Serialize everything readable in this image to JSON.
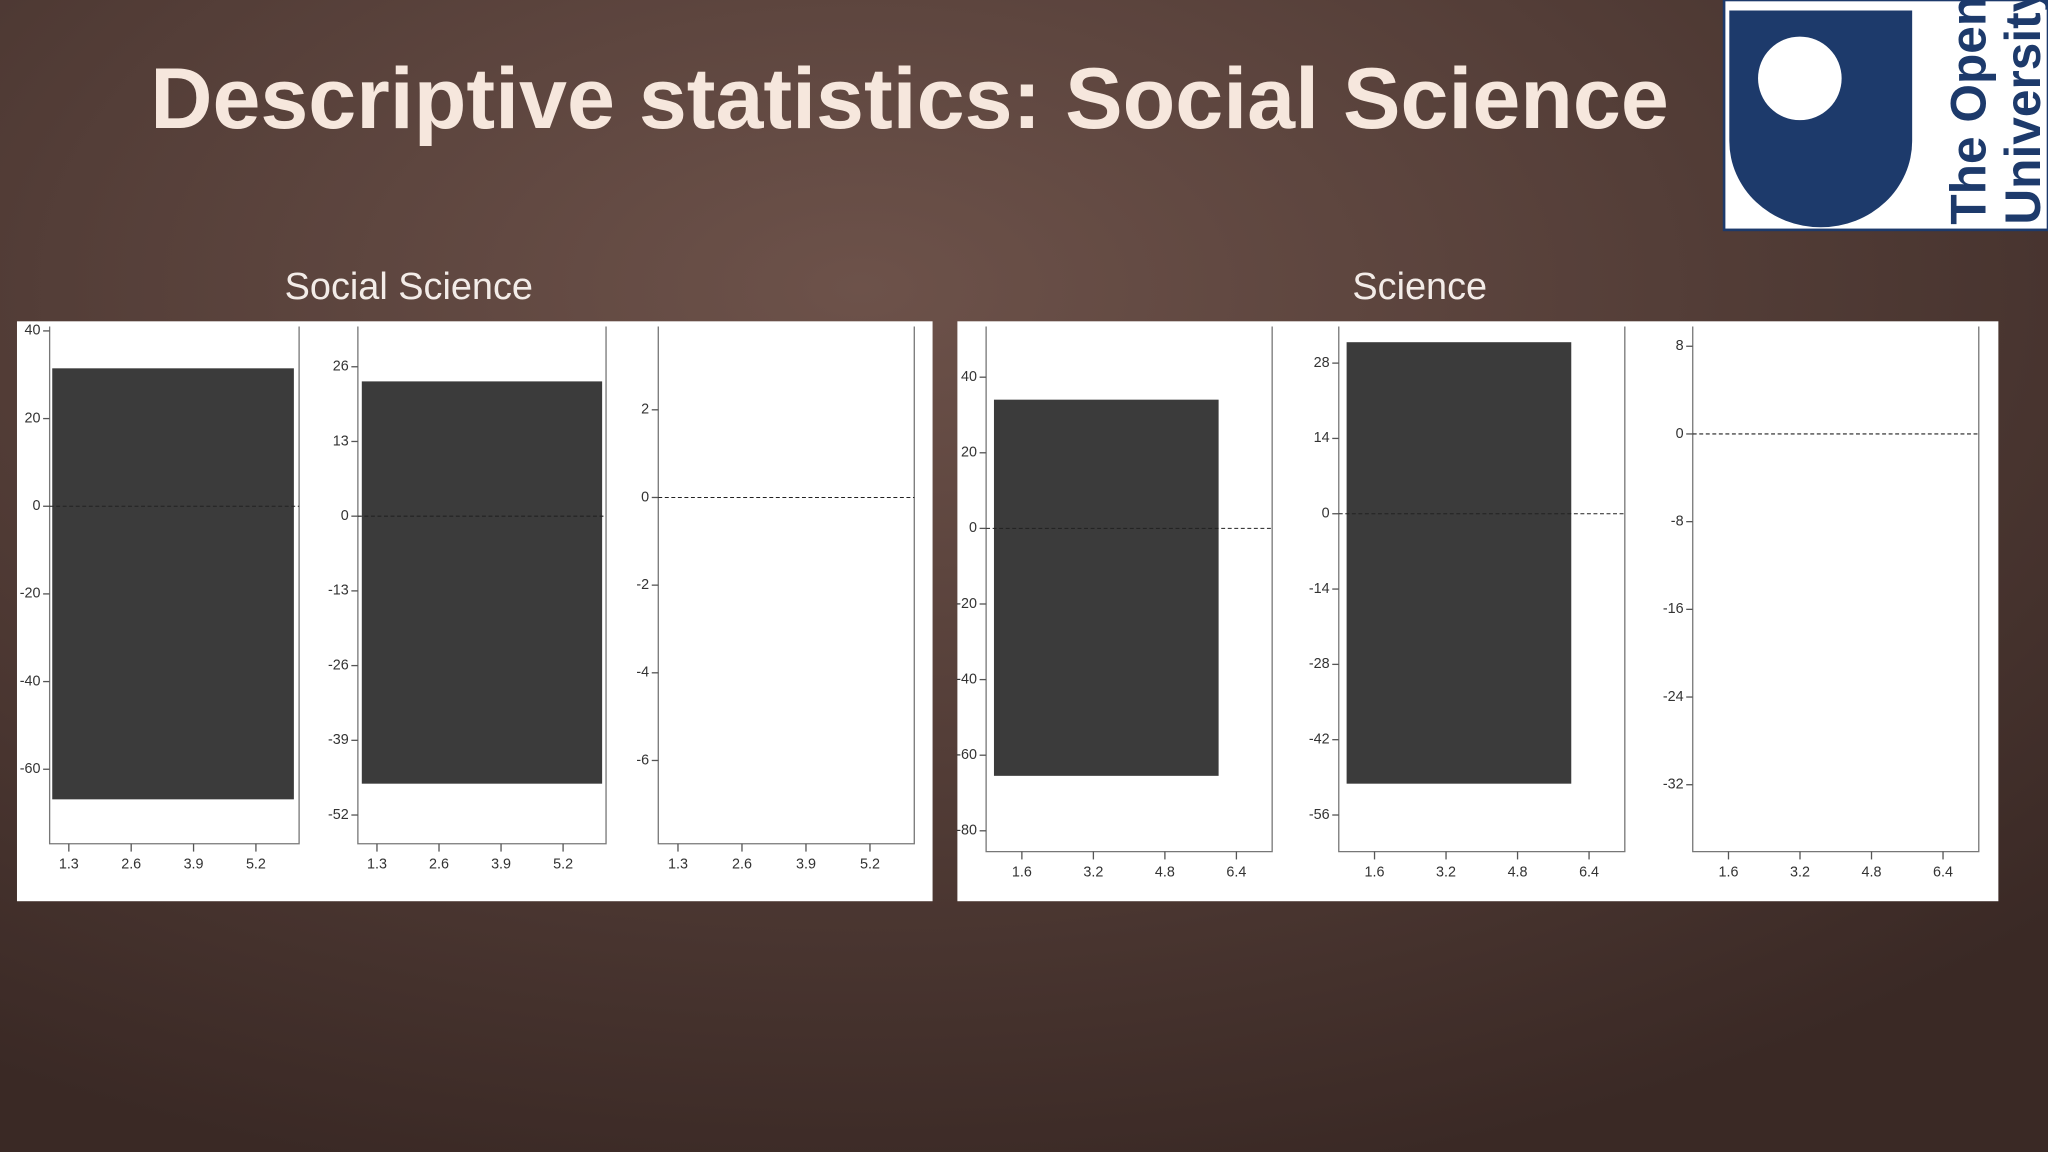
{
  "title": "Descriptive statistics: Social Science",
  "logo": {
    "line1": "The Open",
    "line2": "University"
  },
  "groups": [
    {
      "label": "Social Science"
    },
    {
      "label": "Science"
    }
  ],
  "chart_data": [
    {
      "type": "line",
      "xlim": [
        0.9,
        6.1
      ],
      "xticks": [
        1.3,
        2.6,
        3.9,
        5.2
      ],
      "ylim": [
        -77,
        41
      ],
      "yticks": [
        40,
        20,
        0,
        -20,
        -40,
        -60
      ]
    },
    {
      "type": "line",
      "xlim": [
        0.9,
        6.1
      ],
      "xticks": [
        1.3,
        2.6,
        3.9,
        5.2
      ],
      "ylim": [
        -57,
        33
      ],
      "yticks": [
        26,
        13,
        0,
        -13,
        -26,
        -39,
        -52
      ]
    },
    {
      "type": "line",
      "xlim": [
        0.9,
        6.1
      ],
      "xticks": [
        1.3,
        2.6,
        3.9,
        5.2
      ],
      "ylim": [
        -7.9,
        3.9
      ],
      "yticks": [
        2,
        0,
        -2,
        -4,
        -6
      ]
    },
    {
      "type": "line",
      "xlim": [
        0.8,
        7.2
      ],
      "xticks": [
        1.6,
        3.2,
        4.8,
        6.4
      ],
      "ylim": [
        -85.5,
        53.4
      ],
      "yticks": [
        40,
        20,
        0,
        -20,
        -40,
        -60,
        -80
      ]
    },
    {
      "type": "line",
      "xlim": [
        0.8,
        7.2
      ],
      "xticks": [
        1.6,
        3.2,
        4.8,
        6.4
      ],
      "ylim": [
        -62.8,
        34.8
      ],
      "yticks": [
        28,
        14,
        0,
        -14,
        -28,
        -42,
        -56
      ]
    },
    {
      "type": "line",
      "xlim": [
        0.8,
        7.2
      ],
      "xticks": [
        1.6,
        3.2,
        4.8,
        6.4
      ],
      "ylim": [
        -38.1,
        9.8
      ],
      "yticks": [
        8,
        0,
        -8,
        -16,
        -24,
        -32
      ]
    }
  ]
}
